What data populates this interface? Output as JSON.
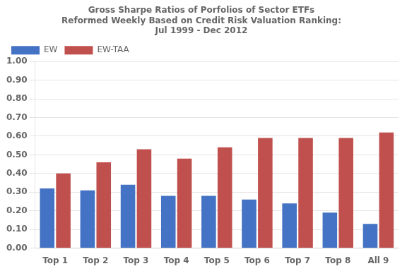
{
  "chart_data": {
    "type": "bar",
    "title": [
      "Gross Sharpe Ratios of Porfolios of Sector ETFs",
      "Reformed Weekly Based on Credit Risk Valuation Ranking:",
      "Jul 1999 - Dec 2012"
    ],
    "categories": [
      "Top 1",
      "Top 2",
      "Top 3",
      "Top 4",
      "Top 5",
      "Top 6",
      "Top 7",
      "Top 8",
      "All 9"
    ],
    "series": [
      {
        "name": "EW",
        "color": "#4472C4",
        "values": [
          0.32,
          0.31,
          0.34,
          0.28,
          0.28,
          0.26,
          0.24,
          0.19,
          0.13
        ]
      },
      {
        "name": "EW-TAA",
        "color": "#C0504D",
        "values": [
          0.4,
          0.46,
          0.53,
          0.48,
          0.54,
          0.59,
          0.59,
          0.59,
          0.62
        ]
      }
    ],
    "ylim": [
      0.0,
      1.0
    ],
    "yticks": [
      {
        "value": 0.0,
        "label": "0.00"
      },
      {
        "value": 0.1,
        "label": "0.10"
      },
      {
        "value": 0.2,
        "label": "0.20"
      },
      {
        "value": 0.3,
        "label": "0.30"
      },
      {
        "value": 0.4,
        "label": "0.40"
      },
      {
        "value": 0.5,
        "label": "0.50"
      },
      {
        "value": 0.6,
        "label": "0.60"
      },
      {
        "value": 0.7,
        "label": "0.70"
      },
      {
        "value": 0.8,
        "label": "0.80"
      },
      {
        "value": 0.9,
        "label": "0.90"
      },
      {
        "value": 1.0,
        "label": "1.00"
      }
    ],
    "grid": true,
    "legend": "upper left"
  }
}
